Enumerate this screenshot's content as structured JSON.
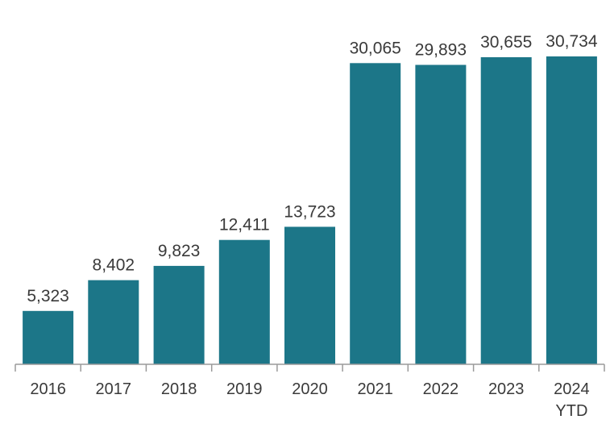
{
  "chart_data": {
    "type": "bar",
    "title": "",
    "xlabel": "",
    "ylabel": "",
    "categories": [
      [
        "2016"
      ],
      [
        "2017"
      ],
      [
        "2018"
      ],
      [
        "2019"
      ],
      [
        "2020"
      ],
      [
        "2021"
      ],
      [
        "2022"
      ],
      [
        "2023"
      ],
      [
        "2024",
        "YTD"
      ]
    ],
    "values": [
      5323,
      8402,
      9823,
      12411,
      13723,
      30065,
      29893,
      30655,
      30734
    ],
    "value_labels": [
      "5,323",
      "8,402",
      "9,823",
      "12,411",
      "13,723",
      "30,065",
      "29,893",
      "30,655",
      "30,734"
    ],
    "ylim": [
      0,
      35000
    ],
    "grid": false,
    "legend": "none",
    "bar_color": "#1c7688",
    "axis_color": "#9a9a9a"
  }
}
